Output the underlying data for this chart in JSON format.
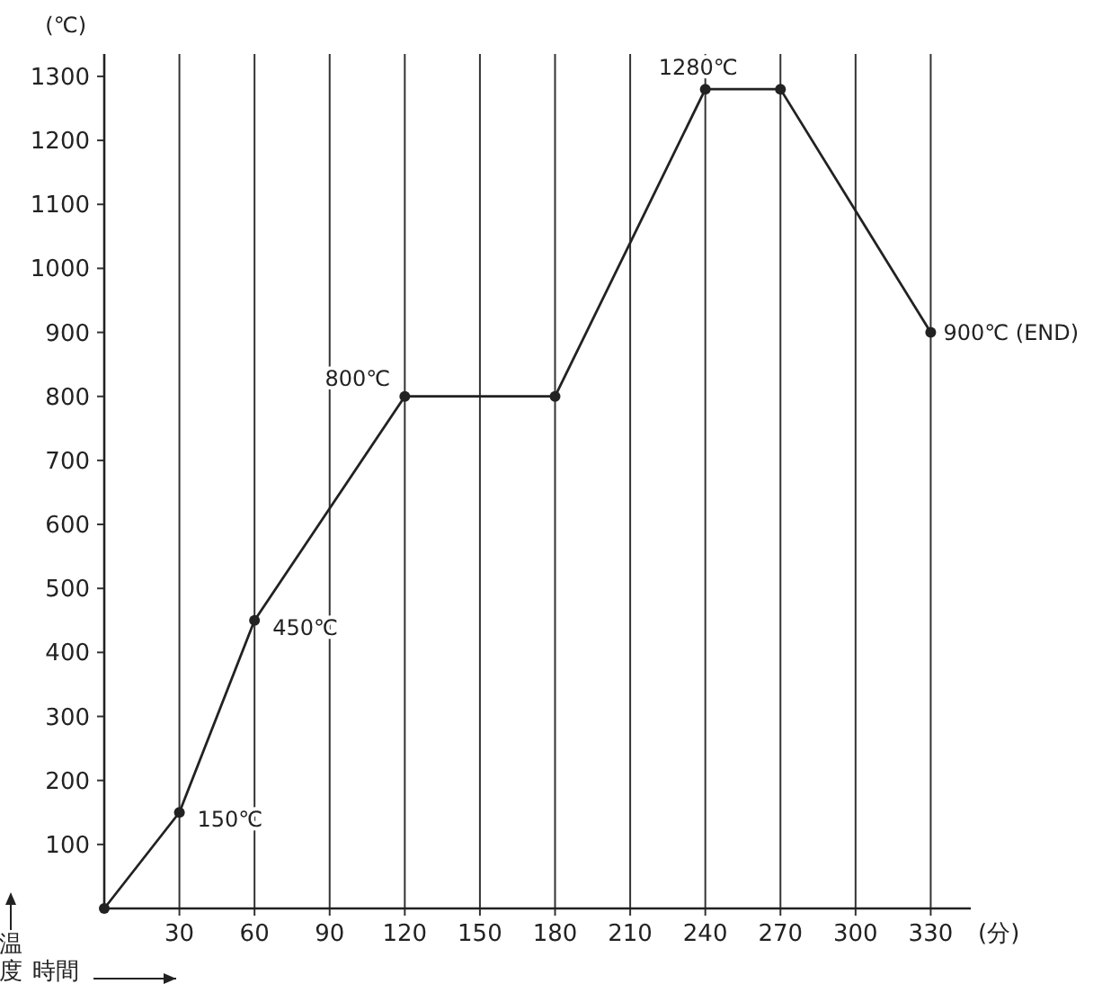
{
  "chart_data": {
    "type": "line",
    "ylabel": "(℃)",
    "xlabel": "(分)",
    "x": [
      0,
      30,
      60,
      120,
      180,
      240,
      270,
      330
    ],
    "series": [
      {
        "color": "#222222",
        "values": [
          0,
          150,
          450,
          800,
          800,
          1280,
          1280,
          900
        ]
      }
    ],
    "xlim": [
      0,
      346
    ],
    "ylim": [
      0,
      1335
    ],
    "xticks": [
      30,
      60,
      90,
      120,
      150,
      180,
      210,
      240,
      270,
      300,
      330
    ],
    "yticks": [
      100,
      200,
      300,
      400,
      500,
      600,
      700,
      800,
      900,
      1000,
      1100,
      1200,
      1300
    ],
    "grid": "x",
    "marker": "circle",
    "line_style": "solid",
    "annotations": [
      {
        "text": "150℃",
        "x": 30,
        "y": 150
      },
      {
        "text": "450℃",
        "x": 60,
        "y": 450
      },
      {
        "text": "800℃",
        "x": 120,
        "y": 800
      },
      {
        "text": "1280℃",
        "x": 240,
        "y": 1280
      },
      {
        "text": "900℃ (END)",
        "x": 330,
        "y": 900
      },
      "温度",
      "時間"
    ]
  }
}
